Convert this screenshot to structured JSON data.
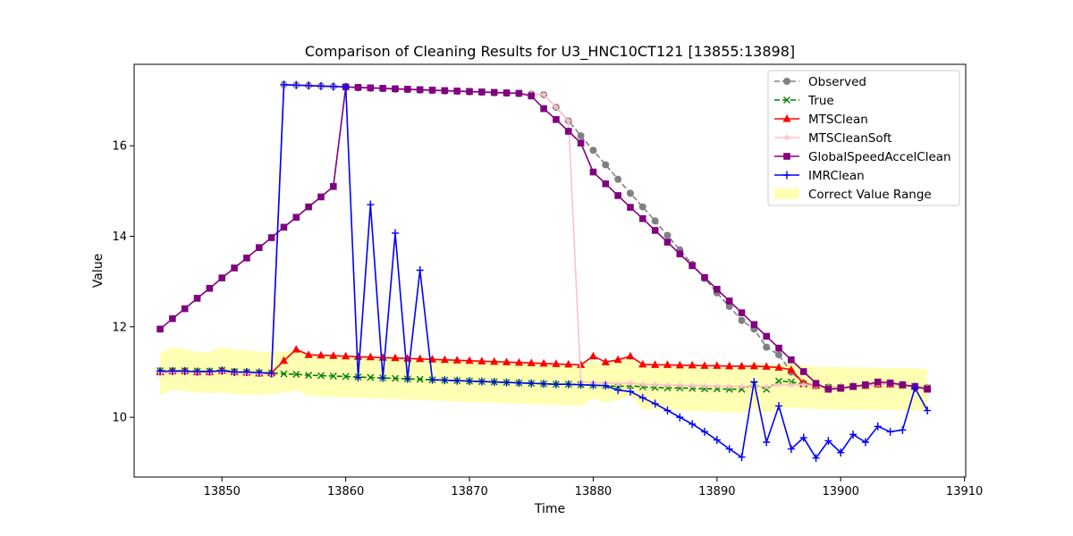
{
  "chart_data": {
    "type": "line",
    "title": "Comparison of Cleaning Results for U3_HNC10CT121 [13855:13898]",
    "xlabel": "Time",
    "ylabel": "Value",
    "xlim": [
      13842.9,
      13910.1
    ],
    "ylim": [
      8.68,
      17.8
    ],
    "xticks": [
      13850,
      13860,
      13870,
      13880,
      13890,
      13900,
      13910
    ],
    "yticks": [
      10,
      12,
      14,
      16
    ],
    "grid": false,
    "legend_position": "top-right",
    "x": [
      13845,
      13846,
      13847,
      13848,
      13849,
      13850,
      13851,
      13852,
      13853,
      13854,
      13855,
      13856,
      13857,
      13858,
      13859,
      13860,
      13861,
      13862,
      13863,
      13864,
      13865,
      13866,
      13867,
      13868,
      13869,
      13870,
      13871,
      13872,
      13873,
      13874,
      13875,
      13876,
      13877,
      13878,
      13879,
      13880,
      13881,
      13882,
      13883,
      13884,
      13885,
      13886,
      13887,
      13888,
      13889,
      13890,
      13891,
      13892,
      13893,
      13894,
      13895,
      13896,
      13897,
      13898,
      13899,
      13900,
      13901,
      13902,
      13903,
      13904,
      13905,
      13906,
      13907
    ],
    "band": {
      "name": "Correct Value Range",
      "color": "#ffff99",
      "lower": [
        10.48,
        10.6,
        10.58,
        10.55,
        10.52,
        10.55,
        10.52,
        10.5,
        10.49,
        10.5,
        10.55,
        10.6,
        10.47,
        10.46,
        10.45,
        10.44,
        10.43,
        10.42,
        10.41,
        10.4,
        10.39,
        10.38,
        10.37,
        10.36,
        10.35,
        10.34,
        10.33,
        10.32,
        10.31,
        10.3,
        10.29,
        10.28,
        10.27,
        10.26,
        10.25,
        10.42,
        10.32,
        10.38,
        10.48,
        10.18,
        10.17,
        10.16,
        10.15,
        10.14,
        10.13,
        10.12,
        10.11,
        10.1,
        10.2,
        10.1,
        10.18,
        10.22,
        10.2,
        10.18,
        10.18,
        10.17,
        10.17,
        10.17,
        10.16,
        10.16,
        10.15,
        10.15,
        10.14
      ],
      "upper": [
        11.42,
        11.55,
        11.5,
        11.45,
        11.45,
        11.55,
        11.5,
        11.48,
        11.45,
        11.45,
        11.45,
        11.5,
        11.4,
        11.38,
        11.37,
        11.36,
        11.35,
        11.34,
        11.33,
        11.32,
        11.31,
        11.3,
        11.29,
        11.28,
        11.27,
        11.26,
        11.25,
        11.24,
        11.23,
        11.22,
        11.21,
        11.2,
        11.19,
        11.18,
        11.17,
        11.25,
        11.18,
        11.25,
        11.3,
        11.15,
        11.14,
        11.13,
        11.12,
        11.12,
        11.11,
        11.1,
        11.1,
        11.09,
        11.2,
        11.12,
        11.18,
        11.2,
        11.15,
        11.12,
        11.11,
        11.11,
        11.1,
        11.1,
        11.09,
        11.09,
        11.08,
        11.08,
        11.07
      ]
    },
    "series": [
      {
        "name": "Observed",
        "color": "#808080",
        "marker": "circle",
        "linestyle": "dashed",
        "values": [
          11.0,
          11.02,
          11.02,
          11.0,
          11.0,
          11.03,
          11.0,
          10.99,
          10.97,
          10.96,
          17.35,
          17.34,
          17.33,
          17.32,
          17.31,
          17.3,
          17.28,
          17.27,
          17.26,
          17.25,
          17.24,
          17.23,
          17.22,
          17.21,
          17.2,
          17.19,
          17.18,
          17.17,
          17.16,
          17.15,
          17.14,
          17.13,
          16.85,
          16.55,
          16.22,
          15.9,
          15.58,
          15.26,
          14.95,
          14.65,
          14.34,
          14.02,
          13.7,
          13.38,
          13.07,
          12.75,
          12.45,
          12.14,
          11.95,
          11.55,
          11.38,
          11.0,
          10.75,
          10.7,
          10.66,
          10.66,
          10.68,
          10.7,
          10.73,
          10.73,
          10.71,
          10.68,
          10.65
        ]
      },
      {
        "name": "True",
        "color": "#008000",
        "marker": "x",
        "linestyle": "dashed",
        "values": [
          11.03,
          11.03,
          11.03,
          11.02,
          11.02,
          11.04,
          11.01,
          11.0,
          10.99,
          10.98,
          10.96,
          10.95,
          10.93,
          10.92,
          10.91,
          10.9,
          10.89,
          10.88,
          10.87,
          10.86,
          10.85,
          10.84,
          10.83,
          10.82,
          10.81,
          10.8,
          10.79,
          10.78,
          10.77,
          10.76,
          10.75,
          10.74,
          10.73,
          10.73,
          10.72,
          10.71,
          10.7,
          10.68,
          10.7,
          10.67,
          10.66,
          10.65,
          10.65,
          10.64,
          10.63,
          10.63,
          10.62,
          10.62,
          10.73,
          10.62,
          10.8,
          10.78,
          10.73,
          10.7,
          10.66,
          10.66,
          10.68,
          10.7,
          10.73,
          10.73,
          10.71,
          10.68,
          10.65
        ]
      },
      {
        "name": "MTSClean",
        "color": "#ff0000",
        "marker": "triangle",
        "linestyle": "solid",
        "values": [
          11.0,
          11.02,
          11.02,
          11.0,
          11.0,
          11.03,
          11.0,
          10.99,
          10.97,
          10.98,
          11.25,
          11.5,
          11.38,
          11.37,
          11.36,
          11.35,
          11.34,
          11.33,
          11.32,
          11.31,
          11.3,
          11.29,
          11.28,
          11.27,
          11.26,
          11.25,
          11.24,
          11.23,
          11.22,
          11.21,
          11.2,
          11.19,
          11.18,
          11.17,
          11.16,
          11.35,
          11.22,
          11.27,
          11.35,
          11.17,
          11.16,
          11.16,
          11.15,
          11.15,
          11.14,
          11.14,
          11.13,
          11.13,
          11.13,
          11.12,
          11.1,
          11.05,
          10.75,
          10.7,
          10.66,
          10.66,
          10.68,
          10.7,
          10.73,
          10.73,
          10.71,
          10.68,
          10.65
        ]
      },
      {
        "name": "MTSCleanSoft",
        "color": "#ffc0cb",
        "marker": "star",
        "linestyle": "solid",
        "values": [
          10.98,
          11.0,
          11.01,
          11.0,
          10.99,
          11.02,
          10.99,
          10.97,
          10.96,
          10.96,
          17.35,
          17.34,
          17.33,
          17.32,
          17.31,
          17.3,
          17.28,
          17.27,
          17.26,
          17.25,
          17.24,
          17.23,
          17.22,
          17.21,
          17.2,
          17.19,
          17.18,
          17.17,
          17.16,
          17.15,
          17.14,
          17.13,
          16.85,
          16.55,
          10.78,
          10.76,
          10.76,
          10.74,
          10.75,
          10.73,
          10.72,
          10.71,
          10.71,
          10.7,
          10.69,
          10.69,
          10.68,
          10.68,
          10.69,
          10.67,
          10.72,
          10.72,
          10.72,
          10.7,
          10.66,
          10.66,
          10.68,
          10.7,
          10.73,
          10.73,
          10.71,
          10.68,
          10.65
        ]
      },
      {
        "name": "GlobalSpeedAccelClean",
        "color": "#800080",
        "marker": "square",
        "linestyle": "solid",
        "values": [
          11.95,
          12.18,
          12.4,
          12.63,
          12.85,
          13.08,
          13.3,
          13.52,
          13.75,
          13.97,
          14.2,
          14.42,
          14.65,
          14.87,
          15.1,
          17.3,
          17.29,
          17.28,
          17.27,
          17.26,
          17.25,
          17.24,
          17.23,
          17.22,
          17.21,
          17.2,
          17.19,
          17.18,
          17.17,
          17.16,
          17.1,
          16.82,
          16.58,
          16.32,
          16.06,
          15.42,
          15.16,
          14.9,
          14.64,
          14.39,
          14.13,
          13.87,
          13.61,
          13.35,
          13.09,
          12.83,
          12.57,
          12.31,
          12.05,
          11.79,
          11.53,
          11.27,
          11.01,
          10.75,
          10.62,
          10.64,
          10.68,
          10.72,
          10.78,
          10.76,
          10.72,
          10.68,
          10.62
        ]
      },
      {
        "name": "IMRClean",
        "color": "#0000ff",
        "marker": "plus",
        "linestyle": "solid",
        "values": [
          11.02,
          11.02,
          11.02,
          11.01,
          11.01,
          11.03,
          11.0,
          11.0,
          10.99,
          10.97,
          17.35,
          17.34,
          17.33,
          17.32,
          17.31,
          17.3,
          10.88,
          14.7,
          10.87,
          14.07,
          10.85,
          13.25,
          10.83,
          10.82,
          10.81,
          10.8,
          10.79,
          10.78,
          10.77,
          10.76,
          10.75,
          10.74,
          10.73,
          10.73,
          10.72,
          10.71,
          10.7,
          10.6,
          10.57,
          10.43,
          10.3,
          10.15,
          10.0,
          9.85,
          9.68,
          9.5,
          9.3,
          9.12,
          10.78,
          9.45,
          10.25,
          9.3,
          9.55,
          9.1,
          9.48,
          9.22,
          9.62,
          9.45,
          9.8,
          9.68,
          9.72,
          10.65,
          10.15
        ]
      }
    ]
  }
}
